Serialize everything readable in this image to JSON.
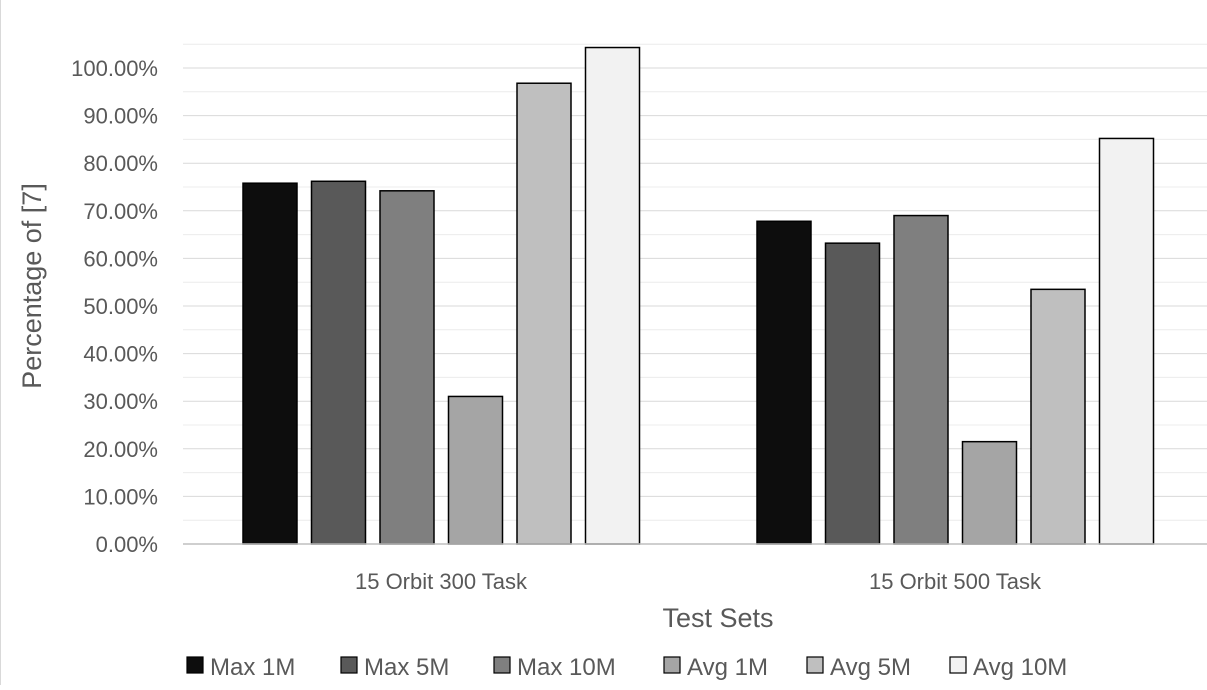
{
  "chart_data": {
    "type": "bar",
    "title": "",
    "xlabel": "Test Sets",
    "ylabel": "Percentage of [7]",
    "categories": [
      "15 Orbit 300 Task",
      "15 Orbit 500 Task"
    ],
    "ylim": [
      0,
      1.0
    ],
    "y_ticks": [
      0,
      0.1,
      0.2,
      0.3,
      0.4,
      0.5,
      0.6,
      0.7,
      0.8,
      0.9,
      1.0
    ],
    "y_tick_labels": [
      "0.00%",
      "10.00%",
      "20.00%",
      "30.00%",
      "40.00%",
      "50.00%",
      "60.00%",
      "70.00%",
      "80.00%",
      "90.00%",
      "100.00%"
    ],
    "y_format": "percent",
    "grid": true,
    "legend_position": "bottom",
    "series": [
      {
        "name": "Max 1M",
        "color": "#0d0d0d",
        "values": [
          0.758,
          0.678
        ]
      },
      {
        "name": "Max 5M",
        "color": "#595959",
        "values": [
          0.762,
          0.632
        ]
      },
      {
        "name": "Max 10M",
        "color": "#7f7f7f",
        "values": [
          0.742,
          0.69
        ]
      },
      {
        "name": "Avg 1M",
        "color": "#a5a5a5",
        "values": [
          0.31,
          0.215
        ]
      },
      {
        "name": "Avg 5M",
        "color": "#bfbfbf",
        "values": [
          0.968,
          0.535
        ]
      },
      {
        "name": "Avg 10M",
        "color": "#f2f2f2",
        "values": [
          1.043,
          0.852
        ]
      }
    ]
  }
}
